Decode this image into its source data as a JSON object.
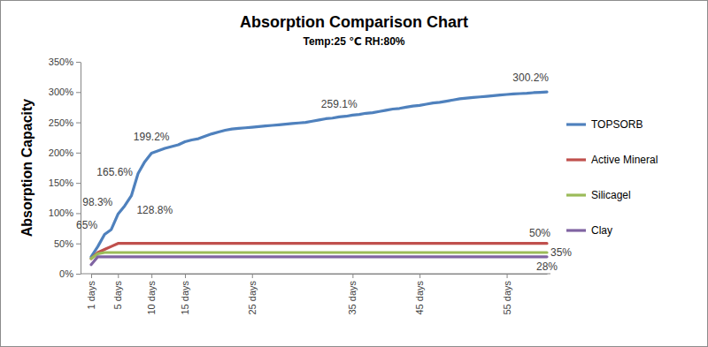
{
  "chart_data": {
    "type": "line",
    "title": "Absorption Comparison Chart",
    "subtitle": "Temp:25 ℃ RH:80%",
    "y_label": "Absorption Capacity",
    "categories": [
      "1 days",
      null,
      null,
      null,
      "5 days",
      null,
      null,
      null,
      null,
      "10 days",
      null,
      null,
      null,
      null,
      "15 days",
      null,
      null,
      null,
      null,
      null,
      null,
      null,
      null,
      null,
      "25 days",
      null,
      null,
      null,
      null,
      null,
      null,
      null,
      null,
      null,
      null,
      null,
      null,
      null,
      null,
      "35 days",
      null,
      null,
      null,
      null,
      null,
      null,
      null,
      null,
      null,
      "45 days",
      null,
      null,
      null,
      null,
      null,
      null,
      null,
      null,
      null,
      null,
      null,
      null,
      "55 days",
      null,
      null,
      null,
      null,
      null,
      null
    ],
    "series": [
      {
        "name": "TOPSORB",
        "color": "#4f81bd",
        "values": [
          28,
          45,
          65,
          73,
          98.3,
          112,
          128.8,
          165.6,
          185,
          199.2,
          203,
          207,
          210,
          213,
          218,
          221,
          223,
          227,
          231,
          234,
          237,
          239,
          240,
          241,
          242,
          243,
          244,
          245,
          246,
          247,
          248,
          249,
          250,
          252,
          254,
          256,
          257,
          259.1,
          260,
          262,
          263,
          265,
          266,
          268,
          270,
          272,
          273,
          275,
          277,
          278,
          280,
          282,
          283,
          285,
          287,
          289,
          290,
          291,
          292,
          293,
          294,
          295,
          296,
          297,
          297.5,
          298,
          299,
          299.5,
          300.2
        ],
        "value_labels": [
          null,
          null,
          "65%",
          null,
          "98.3%",
          null,
          "128.8%",
          "165.6%",
          null,
          "199.2%",
          null,
          null,
          null,
          null,
          null,
          null,
          null,
          null,
          null,
          null,
          null,
          null,
          null,
          null,
          null,
          null,
          null,
          null,
          null,
          null,
          null,
          null,
          null,
          null,
          null,
          null,
          null,
          "259.1%",
          null,
          null,
          null,
          null,
          null,
          null,
          null,
          null,
          null,
          null,
          null,
          null,
          null,
          null,
          null,
          null,
          null,
          null,
          null,
          null,
          null,
          null,
          null,
          null,
          null,
          null,
          null,
          null,
          null,
          null,
          "300.2%"
        ]
      },
      {
        "name": "Active Mineral",
        "color": "#c0504d",
        "values": [
          25,
          35,
          40,
          45,
          50,
          50,
          50,
          50,
          50,
          50,
          50,
          50,
          50,
          50,
          50,
          50,
          50,
          50,
          50,
          50,
          50,
          50,
          50,
          50,
          50,
          50,
          50,
          50,
          50,
          50,
          50,
          50,
          50,
          50,
          50,
          50,
          50,
          50,
          50,
          50,
          50,
          50,
          50,
          50,
          50,
          50,
          50,
          50,
          50,
          50,
          50,
          50,
          50,
          50,
          50,
          50,
          50,
          50,
          50,
          50,
          50,
          50,
          50,
          50,
          50,
          50,
          50,
          50,
          50
        ],
        "value_labels": [
          null,
          null,
          null,
          null,
          null,
          null,
          null,
          null,
          null,
          null,
          null,
          null,
          null,
          null,
          null,
          null,
          null,
          null,
          null,
          null,
          null,
          null,
          null,
          null,
          null,
          null,
          null,
          null,
          null,
          null,
          null,
          null,
          null,
          null,
          null,
          null,
          null,
          null,
          null,
          null,
          null,
          null,
          null,
          null,
          null,
          null,
          null,
          null,
          null,
          null,
          null,
          null,
          null,
          null,
          null,
          null,
          null,
          null,
          null,
          null,
          null,
          null,
          null,
          null,
          null,
          null,
          null,
          null,
          "50%"
        ]
      },
      {
        "name": "Silicagel",
        "color": "#9bbb59",
        "values": [
          25,
          33,
          35,
          35,
          35,
          35,
          35,
          35,
          35,
          35,
          35,
          35,
          35,
          35,
          35,
          35,
          35,
          35,
          35,
          35,
          35,
          35,
          35,
          35,
          35,
          35,
          35,
          35,
          35,
          35,
          35,
          35,
          35,
          35,
          35,
          35,
          35,
          35,
          35,
          35,
          35,
          35,
          35,
          35,
          35,
          35,
          35,
          35,
          35,
          35,
          35,
          35,
          35,
          35,
          35,
          35,
          35,
          35,
          35,
          35,
          35,
          35,
          35,
          35,
          35,
          35,
          35,
          35,
          35
        ],
        "value_labels": [
          null,
          null,
          null,
          null,
          null,
          null,
          null,
          null,
          null,
          null,
          null,
          null,
          null,
          null,
          null,
          null,
          null,
          null,
          null,
          null,
          null,
          null,
          null,
          null,
          null,
          null,
          null,
          null,
          null,
          null,
          null,
          null,
          null,
          null,
          null,
          null,
          null,
          null,
          null,
          null,
          null,
          null,
          null,
          null,
          null,
          null,
          null,
          null,
          null,
          null,
          null,
          null,
          null,
          null,
          null,
          null,
          null,
          null,
          null,
          null,
          null,
          null,
          null,
          null,
          null,
          null,
          null,
          null,
          "35%"
        ]
      },
      {
        "name": "Clay",
        "color": "#8064a2",
        "values": [
          15,
          28,
          28,
          28,
          28,
          28,
          28,
          28,
          28,
          28,
          28,
          28,
          28,
          28,
          28,
          28,
          28,
          28,
          28,
          28,
          28,
          28,
          28,
          28,
          28,
          28,
          28,
          28,
          28,
          28,
          28,
          28,
          28,
          28,
          28,
          28,
          28,
          28,
          28,
          28,
          28,
          28,
          28,
          28,
          28,
          28,
          28,
          28,
          28,
          28,
          28,
          28,
          28,
          28,
          28,
          28,
          28,
          28,
          28,
          28,
          28,
          28,
          28,
          28,
          28,
          28,
          28,
          28,
          28
        ],
        "value_labels": [
          null,
          null,
          null,
          null,
          null,
          null,
          null,
          null,
          null,
          null,
          null,
          null,
          null,
          null,
          null,
          null,
          null,
          null,
          null,
          null,
          null,
          null,
          null,
          null,
          null,
          null,
          null,
          null,
          null,
          null,
          null,
          null,
          null,
          null,
          null,
          null,
          null,
          null,
          null,
          null,
          null,
          null,
          null,
          null,
          null,
          null,
          null,
          null,
          null,
          null,
          null,
          null,
          null,
          null,
          null,
          null,
          null,
          null,
          null,
          null,
          null,
          null,
          null,
          null,
          null,
          null,
          null,
          null,
          "28%"
        ]
      }
    ],
    "ylim": [
      0,
      350
    ],
    "yticks": [
      {
        "value": 0,
        "label": "0%"
      },
      {
        "value": 50,
        "label": "50%"
      },
      {
        "value": 100,
        "label": "100%"
      },
      {
        "value": 150,
        "label": "150%"
      },
      {
        "value": 200,
        "label": "200%"
      },
      {
        "value": 250,
        "label": "250%"
      },
      {
        "value": 300,
        "label": "300%"
      },
      {
        "value": 350,
        "label": "350%"
      }
    ],
    "grid": false,
    "legend": "right",
    "data_labels": true
  }
}
